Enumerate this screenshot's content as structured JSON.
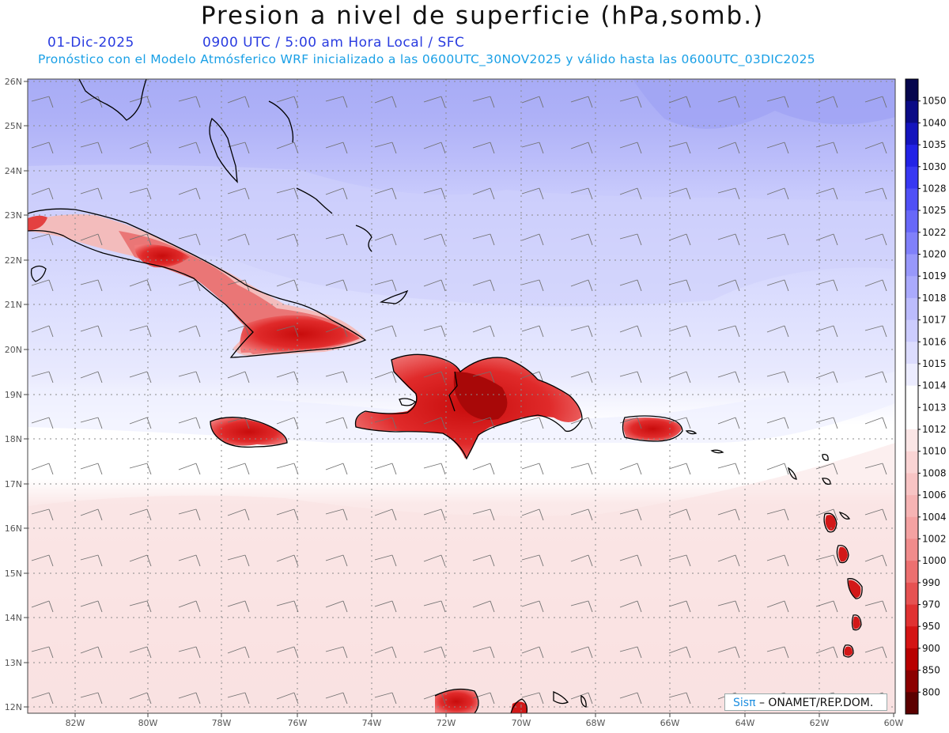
{
  "title": "Presion a nivel de superficie (hPa,somb.)",
  "date": "01-Dic-2025",
  "valid_time": "0900 UTC / 5:00 am Hora Local / SFC",
  "forecast_note": "Pronóstico con el Modelo Atmósferico WRF inicializado a las 0600UTC_30NOV2025 y válido hasta las  0600UTC_03DIC2025",
  "credit": {
    "sis": "Sisπ",
    "org": "– ONAMET/REP.DOM."
  },
  "lat_labels": [
    "12N",
    "13N",
    "14N",
    "15N",
    "16N",
    "17N",
    "18N",
    "19N",
    "20N",
    "21N",
    "22N",
    "23N",
    "24N",
    "25N",
    "26N"
  ],
  "lon_labels": [
    "82W",
    "80W",
    "78W",
    "76W",
    "74W",
    "72W",
    "70W",
    "68W",
    "66W",
    "64W",
    "62W",
    "60W"
  ],
  "colorbar": {
    "levels": [
      "1050",
      "1040",
      "1035",
      "1030",
      "1028",
      "1025",
      "1022",
      "1020",
      "1019",
      "1018",
      "1017",
      "1016",
      "1015",
      "1014",
      "1013",
      "1012",
      "1010",
      "1008",
      "1006",
      "1004",
      "1002",
      "1000",
      "990",
      "970",
      "950",
      "900",
      "850",
      "800"
    ],
    "colors": [
      "#06064e",
      "#0b0b86",
      "#1414bd",
      "#2222e6",
      "#3838f2",
      "#5050f6",
      "#6868f8",
      "#8080fa",
      "#9898fb",
      "#aaaafd",
      "#bcbcfd",
      "#ccccfe",
      "#dcdcfe",
      "#ececff",
      "#ffffff",
      "#ffffff",
      "#fbe6e6",
      "#fad4d4",
      "#f8c4c4",
      "#f6b4b4",
      "#f4a2a2",
      "#f08c8c",
      "#ec7070",
      "#e65252",
      "#e03232",
      "#d41414",
      "#b80000",
      "#8c0000",
      "#5c0000"
    ]
  }
}
